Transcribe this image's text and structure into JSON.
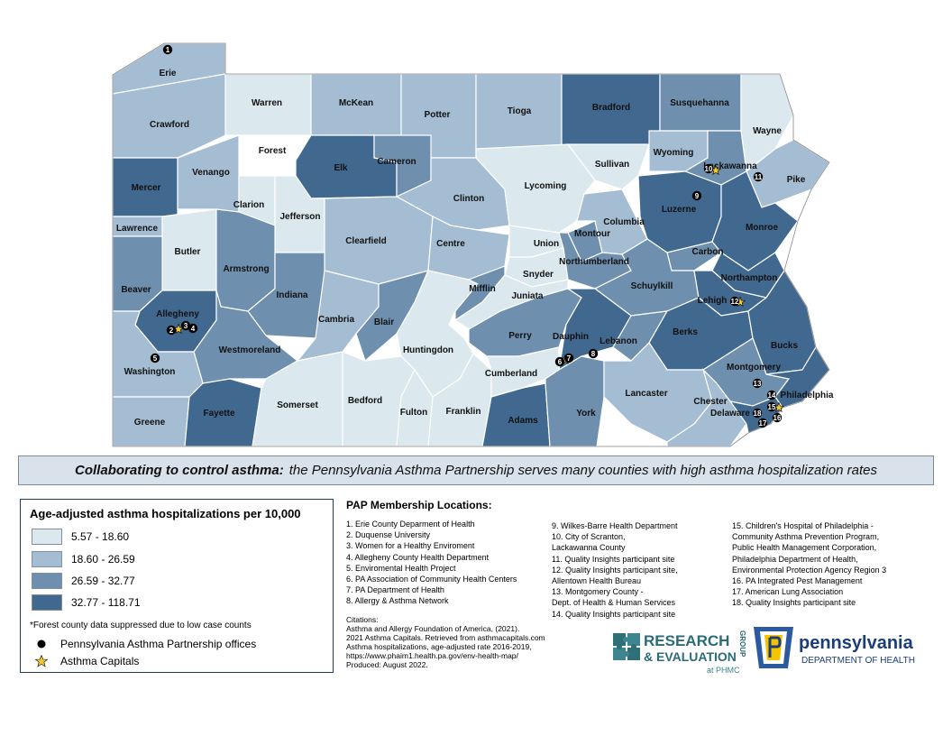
{
  "colors": {
    "class1": "#dbe8ee",
    "class2": "#a4bdd2",
    "class3": "#6e8fae",
    "class4": "#41688e",
    "forest": "#ffffff",
    "marker": "#000000",
    "star": "#f3c62b"
  },
  "map": {
    "counties": [
      {
        "name": "Erie",
        "class": 2
      },
      {
        "name": "Warren",
        "class": 1
      },
      {
        "name": "McKean",
        "class": 2
      },
      {
        "name": "Potter",
        "class": 2
      },
      {
        "name": "Tioga",
        "class": 2
      },
      {
        "name": "Bradford",
        "class": 4
      },
      {
        "name": "Susquehanna",
        "class": 3
      },
      {
        "name": "Wayne",
        "class": 1
      },
      {
        "name": "Crawford",
        "class": 2
      },
      {
        "name": "Forest",
        "class": 0
      },
      {
        "name": "Elk",
        "class": 4
      },
      {
        "name": "Cameron",
        "class": 3
      },
      {
        "name": "Sullivan",
        "class": 1
      },
      {
        "name": "Wyoming",
        "class": 2
      },
      {
        "name": "Lackawanna",
        "class": 3
      },
      {
        "name": "Pike",
        "class": 2
      },
      {
        "name": "Mercer",
        "class": 4
      },
      {
        "name": "Venango",
        "class": 2
      },
      {
        "name": "Clarion",
        "class": 1
      },
      {
        "name": "Jefferson",
        "class": 1
      },
      {
        "name": "Clinton",
        "class": 2
      },
      {
        "name": "Lycoming",
        "class": 1
      },
      {
        "name": "Luzerne",
        "class": 4
      },
      {
        "name": "Monroe",
        "class": 4
      },
      {
        "name": "Lawrence",
        "class": 2
      },
      {
        "name": "Butler",
        "class": 1
      },
      {
        "name": "Clearfield",
        "class": 2
      },
      {
        "name": "Centre",
        "class": 2
      },
      {
        "name": "Union",
        "class": 1
      },
      {
        "name": "Montour",
        "class": 3
      },
      {
        "name": "Columbia",
        "class": 2
      },
      {
        "name": "Carbon",
        "class": 3
      },
      {
        "name": "Beaver",
        "class": 3
      },
      {
        "name": "Armstrong",
        "class": 3
      },
      {
        "name": "Indiana",
        "class": 3
      },
      {
        "name": "Snyder",
        "class": 1
      },
      {
        "name": "Northumberland",
        "class": 3
      },
      {
        "name": "Schuylkill",
        "class": 3
      },
      {
        "name": "Northampton",
        "class": 4
      },
      {
        "name": "Lehigh",
        "class": 4
      },
      {
        "name": "Allegheny",
        "class": 4
      },
      {
        "name": "Westmoreland",
        "class": 3
      },
      {
        "name": "Cambria",
        "class": 2
      },
      {
        "name": "Blair",
        "class": 3
      },
      {
        "name": "Huntingdon",
        "class": 1
      },
      {
        "name": "Mifflin",
        "class": 3
      },
      {
        "name": "Juniata",
        "class": 1
      },
      {
        "name": "Perry",
        "class": 3
      },
      {
        "name": "Dauphin",
        "class": 4
      },
      {
        "name": "Lebanon",
        "class": 3
      },
      {
        "name": "Berks",
        "class": 4
      },
      {
        "name": "Bucks",
        "class": 4
      },
      {
        "name": "Montgomery",
        "class": 3
      },
      {
        "name": "Philadelphia",
        "class": 4
      },
      {
        "name": "Washington",
        "class": 2
      },
      {
        "name": "Greene",
        "class": 2
      },
      {
        "name": "Fayette",
        "class": 4
      },
      {
        "name": "Somerset",
        "class": 1
      },
      {
        "name": "Bedford",
        "class": 1
      },
      {
        "name": "Fulton",
        "class": 1
      },
      {
        "name": "Franklin",
        "class": 1
      },
      {
        "name": "Cumberland",
        "class": 1
      },
      {
        "name": "Adams",
        "class": 4
      },
      {
        "name": "York",
        "class": 3
      },
      {
        "name": "Lancaster",
        "class": 2
      },
      {
        "name": "Chester",
        "class": 2
      },
      {
        "name": "Delaware",
        "class": 4
      }
    ],
    "markers": [
      "1",
      "2",
      "3",
      "4",
      "5",
      "6",
      "7",
      "8",
      "9",
      "10",
      "11",
      "12",
      "13",
      "14",
      "15",
      "16",
      "17",
      "18"
    ]
  },
  "banner": {
    "bold": "Collaborating to control asthma:",
    "rest": "the Pennsylvania Asthma Partnership serves many counties with high asthma hospitalization rates"
  },
  "legend": {
    "title": "Age-adjusted asthma hospitalizations per 10,000",
    "classes": [
      {
        "label": "5.57 - 18.60",
        "color": "#dbe8ee"
      },
      {
        "label": "18.60 - 26.59",
        "color": "#a4bdd2"
      },
      {
        "label": "26.59 - 32.77",
        "color": "#6e8fae"
      },
      {
        "label": "32.77 - 118.71",
        "color": "#41688e"
      }
    ],
    "note": "*Forest county data suppressed due to low case counts",
    "offices": "Pennsylvania Asthma Partnership offices",
    "capitals": "Asthma Capitals"
  },
  "pap": {
    "title": "PAP Membership Locations:",
    "col1": [
      "1. Erie County Deparment of Health",
      "2. Duquense University",
      "3. Women for a Healthy Enviroment",
      "4. Allegheny County Health Department",
      "5. Enviromental Health Project",
      "6. PA Association of Community Health Centers",
      "7. PA Department of Health",
      "8. Allergy & Asthma Network"
    ],
    "col2": [
      "9. Wilkes-Barre Health Department",
      "10. City of Scranton,\n      Lackawanna County",
      "11. Quality Insights participant site",
      "12. Quality Insights participant site,\n      Allentown Health Bureau",
      "13. Montgomery County -\n      Dept. of Health & Human Services",
      "14. Quality Insights participant site"
    ],
    "col3": [
      "15. Children's Hospital of Philadelphia -\n      Community Asthma Prevention Program,\n      Public Health Management Corporation,\n      Philadelphia Department of Health,\n      Environmental Protection Agency Region 3",
      "16. PA Integrated Pest Management",
      "17. American Lung Association",
      "18. Quality Insights participant site"
    ]
  },
  "citations": [
    "Citations:",
    "Asthma and Allergy Foundation of America, (2021).",
    "2021 Asthma Capitals. Retrieved from asthmacapitals.com",
    "Asthma hospitalizations, age-adjusted rate 2016-2019,",
    "https://www.phaim1.health.pa.gov/env-health-map/",
    "Produced: August 2022."
  ],
  "logos": {
    "research_line1": "RESEARCH",
    "research_line2": "& EVALUATION",
    "research_group": "GROUP",
    "research_sub": "at PHMC",
    "pa_name": "pennsylvania",
    "pa_dept": "DEPARTMENT OF HEALTH"
  }
}
